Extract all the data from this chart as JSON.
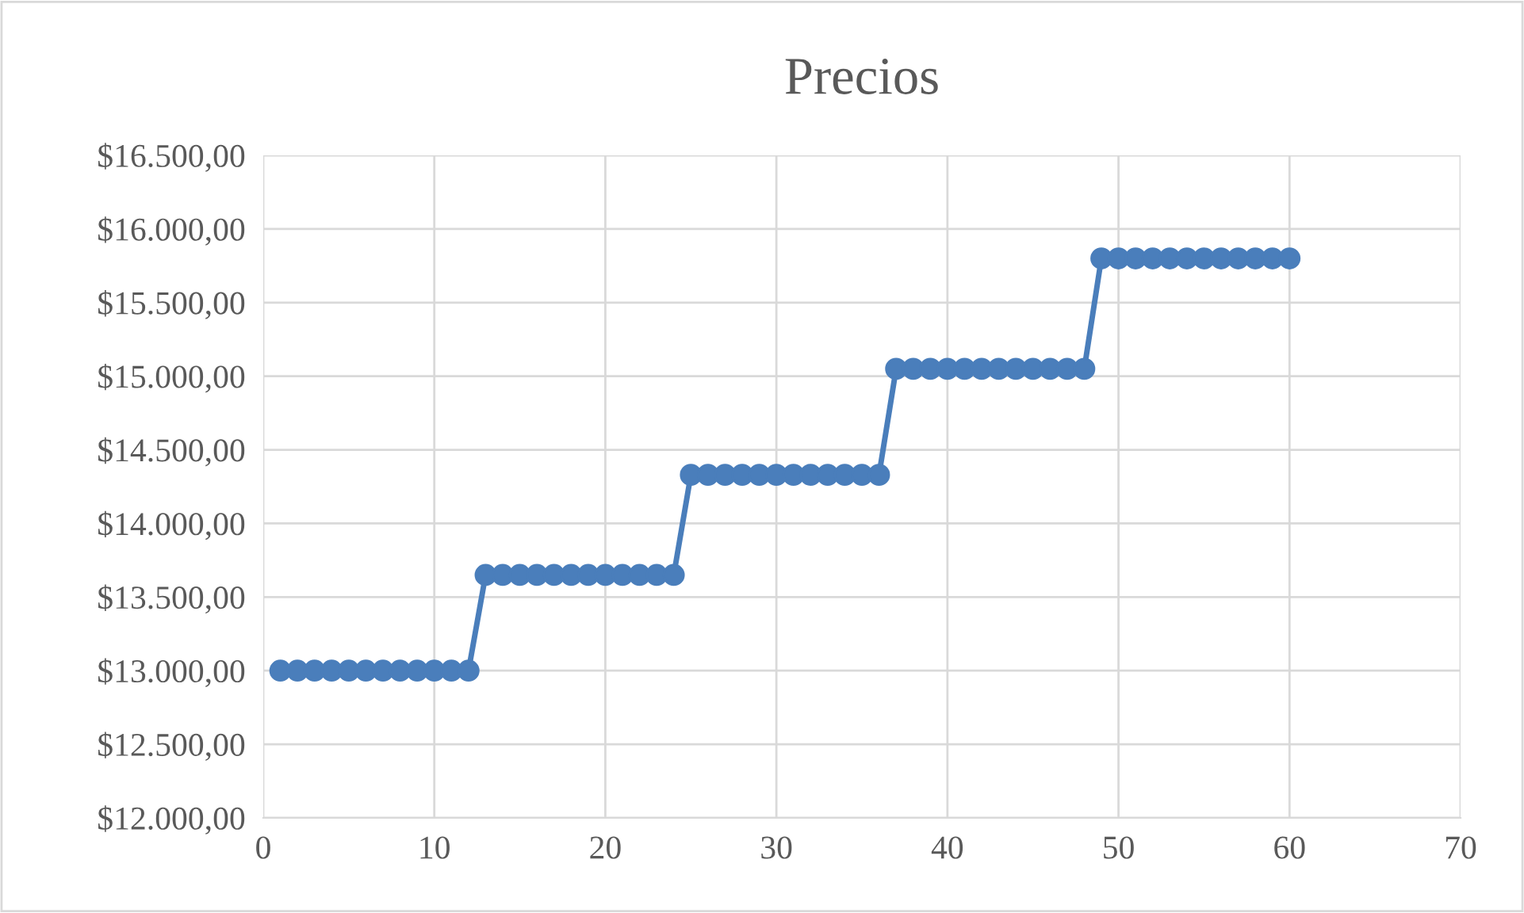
{
  "chart_data": {
    "type": "line",
    "title": "Precios",
    "x": [
      1,
      2,
      3,
      4,
      5,
      6,
      7,
      8,
      9,
      10,
      11,
      12,
      13,
      14,
      15,
      16,
      17,
      18,
      19,
      20,
      21,
      22,
      23,
      24,
      25,
      26,
      27,
      28,
      29,
      30,
      31,
      32,
      33,
      34,
      35,
      36,
      37,
      38,
      39,
      40,
      41,
      42,
      43,
      44,
      45,
      46,
      47,
      48,
      49,
      50,
      51,
      52,
      53,
      54,
      55,
      56,
      57,
      58,
      59,
      60
    ],
    "series": [
      {
        "color": "#4a7ebb",
        "values": [
          13000,
          13000,
          13000,
          13000,
          13000,
          13000,
          13000,
          13000,
          13000,
          13000,
          13000,
          13000,
          13650,
          13650,
          13650,
          13650,
          13650,
          13650,
          13650,
          13650,
          13650,
          13650,
          13650,
          13650,
          14330,
          14330,
          14330,
          14330,
          14330,
          14330,
          14330,
          14330,
          14330,
          14330,
          14330,
          14330,
          15050,
          15050,
          15050,
          15050,
          15050,
          15050,
          15050,
          15050,
          15050,
          15050,
          15050,
          15050,
          15800,
          15800,
          15800,
          15800,
          15800,
          15800,
          15800,
          15800,
          15800,
          15800,
          15800,
          15800
        ]
      }
    ],
    "xlim": [
      0,
      70
    ],
    "xticks": [
      0,
      10,
      20,
      30,
      40,
      50,
      60,
      70
    ],
    "ylim": [
      12000,
      16500
    ],
    "yticks": [
      {
        "value": 12000,
        "label": "$12.000,00"
      },
      {
        "value": 12500,
        "label": "$12.500,00"
      },
      {
        "value": 13000,
        "label": "$13.000,00"
      },
      {
        "value": 13500,
        "label": "$13.500,00"
      },
      {
        "value": 14000,
        "label": "$14.000,00"
      },
      {
        "value": 14500,
        "label": "$14.500,00"
      },
      {
        "value": 15000,
        "label": "$15.000,00"
      },
      {
        "value": 15500,
        "label": "$15.500,00"
      },
      {
        "value": 16000,
        "label": "$16.000,00"
      },
      {
        "value": 16500,
        "label": "$16.500,00"
      }
    ],
    "grid": true,
    "marker": "circle",
    "line_style": "solid",
    "legend": false
  }
}
